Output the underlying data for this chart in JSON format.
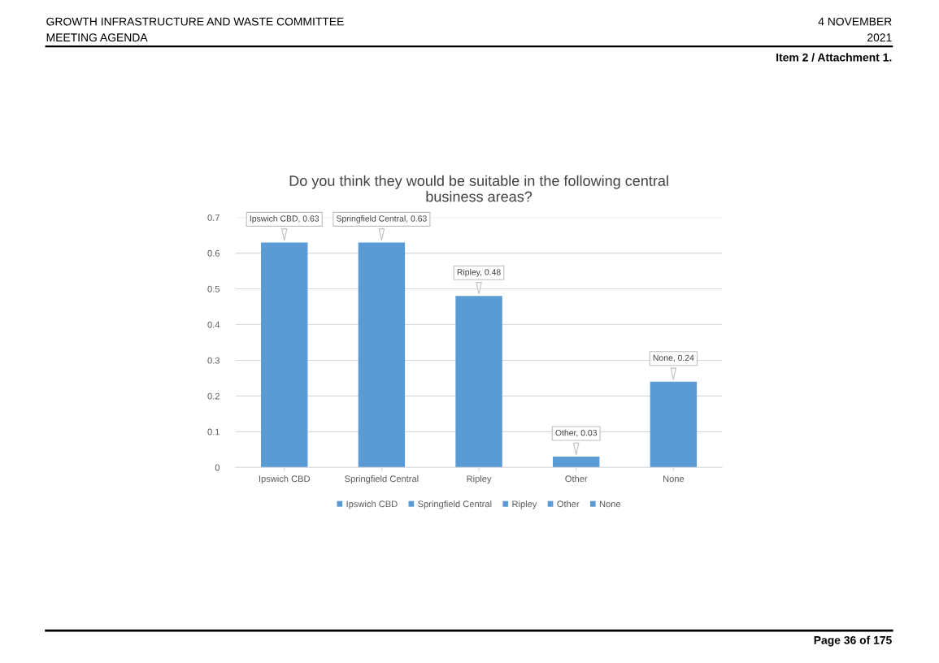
{
  "chart_data": {
    "type": "bar",
    "title": "Do you think they would be suitable in the following central\nbusiness areas?",
    "categories": [
      "Ipswich CBD",
      "Springfield Central",
      "Ripley",
      "Other",
      "None"
    ],
    "series": [
      {
        "name": "Ipswich CBD",
        "color": "#5b9bd5",
        "values": [
          0.63,
          null,
          null,
          null,
          null
        ],
        "value_labels": [
          "Ipswich CBD, 0.63",
          null,
          null,
          null,
          null
        ]
      },
      {
        "name": "Springfield Central",
        "color": "#5b9bd5",
        "values": [
          null,
          0.63,
          null,
          null,
          null
        ],
        "value_labels": [
          null,
          "Springfield Central, 0.63",
          null,
          null,
          null
        ]
      },
      {
        "name": "Ripley",
        "color": "#5b9bd5",
        "values": [
          null,
          null,
          0.48,
          null,
          null
        ],
        "value_labels": [
          null,
          null,
          "Ripley, 0.48",
          null,
          null
        ]
      },
      {
        "name": "Other",
        "color": "#5b9bd5",
        "values": [
          null,
          null,
          null,
          0.03,
          null
        ],
        "value_labels": [
          null,
          null,
          null,
          "Other, 0.03",
          null
        ]
      },
      {
        "name": "None",
        "color": "#5b9bd5",
        "values": [
          null,
          null,
          null,
          null,
          0.24
        ],
        "value_labels": [
          null,
          null,
          null,
          null,
          "None, 0.24"
        ]
      }
    ],
    "ylim": [
      0,
      0.7
    ],
    "yticks": [
      {
        "value": 0,
        "label": "0"
      },
      0.1,
      0.2,
      0.3,
      0.4,
      0.5,
      0.6,
      0.7
    ],
    "grid": "y",
    "legend": "bottom",
    "annotations": [
      "GROWTH INFRASTRUCTURE AND WASTE COMMITTEE",
      "MEETING AGENDA",
      "4 NOVEMBER",
      "2021",
      "Item 2 / Attachment 1.",
      "Page 36 of 175"
    ]
  }
}
